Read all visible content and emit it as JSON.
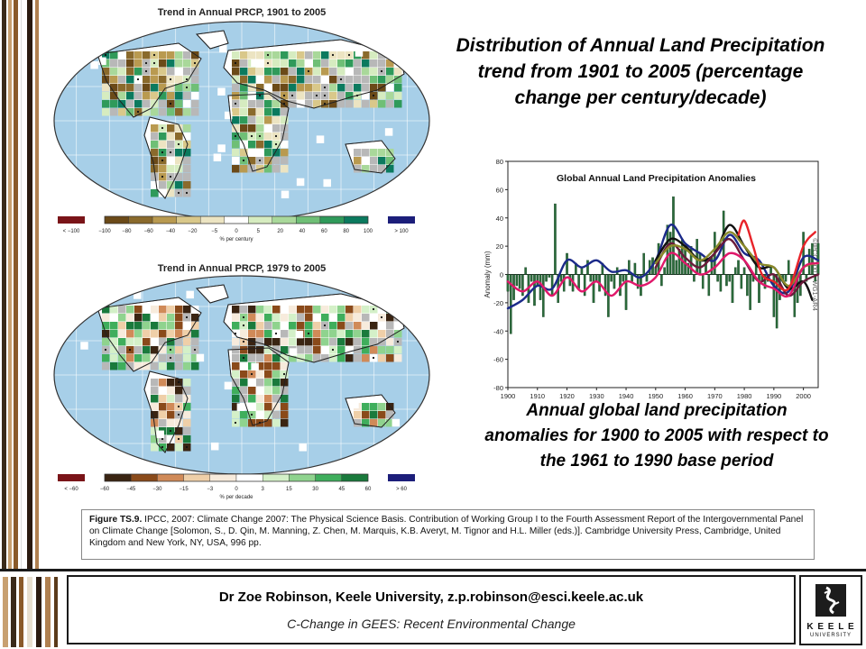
{
  "slide": {
    "main_title": "Distribution of Annual Land Precipitation trend from 1901 to 2005 (percentage change per century/decade)",
    "chart_caption": "Annual global land precipitation anomalies for 1900 to 2005 with respect to the 1961 to 1990 base period"
  },
  "map_top": {
    "title": "Trend in Annual PRCP, 1901 to 2005",
    "legend_low": "< −100",
    "legend_high": "> 100",
    "legend_ticks": [
      "−100",
      "−80",
      "−60",
      "−40",
      "−20",
      "−5",
      "0",
      "5",
      "20",
      "40",
      "60",
      "80",
      "100"
    ],
    "legend_unit": "% per century"
  },
  "map_bottom": {
    "title": "Trend in Annual PRCP, 1979 to 2005",
    "legend_low": "< −60",
    "legend_high": "> 60",
    "legend_ticks": [
      "−60",
      "−45",
      "−30",
      "−15",
      "−3",
      "0",
      "3",
      "15",
      "30",
      "45",
      "60"
    ],
    "legend_unit": "% per decade"
  },
  "legend_colors": {
    "top": [
      "#6b4a18",
      "#8a6a2c",
      "#b99a50",
      "#d9c88a",
      "#ece4c2",
      "#ffffff",
      "#d6ecc0",
      "#a9d89a",
      "#6fbf76",
      "#2f9a5a",
      "#0b7a5e"
    ],
    "bottom": [
      "#3a2412",
      "#8a4a1a",
      "#d08a58",
      "#efcfa8",
      "#f7ebdc",
      "#ffffff",
      "#d4f0c8",
      "#8fd38e",
      "#3fae5c",
      "#1a7a3c"
    ],
    "low_box_top": "#7a1418",
    "high_box_top": "#1c1e7a",
    "low_box_bottom": "#7a1418",
    "high_box_bottom": "#1c1e7a"
  },
  "chart_data": {
    "type": "bar",
    "title": "Global Annual Land Precipitation Anomalies",
    "ylabel": "Anomaly (mm)",
    "xlabel": "",
    "ylim": [
      -80,
      80
    ],
    "xlim": [
      1900,
      2005
    ],
    "yticks": [
      80,
      60,
      40,
      20,
      0,
      -20,
      -40,
      -60,
      -80
    ],
    "xticks": [
      1900,
      1910,
      1920,
      1930,
      1940,
      1950,
      1960,
      1970,
      1980,
      1990,
      2000
    ],
    "side_label": "©IPCC 2007: WG1-AR4",
    "x": [
      1900,
      1901,
      1902,
      1903,
      1904,
      1905,
      1906,
      1907,
      1908,
      1909,
      1910,
      1911,
      1912,
      1913,
      1914,
      1915,
      1916,
      1917,
      1918,
      1919,
      1920,
      1921,
      1922,
      1923,
      1924,
      1925,
      1926,
      1927,
      1928,
      1929,
      1930,
      1931,
      1932,
      1933,
      1934,
      1935,
      1936,
      1937,
      1938,
      1939,
      1940,
      1941,
      1942,
      1943,
      1944,
      1945,
      1946,
      1947,
      1948,
      1949,
      1950,
      1951,
      1952,
      1953,
      1954,
      1955,
      1956,
      1957,
      1958,
      1959,
      1960,
      1961,
      1962,
      1963,
      1964,
      1965,
      1966,
      1967,
      1968,
      1969,
      1970,
      1971,
      1972,
      1973,
      1974,
      1975,
      1976,
      1977,
      1978,
      1979,
      1980,
      1981,
      1982,
      1983,
      1984,
      1985,
      1986,
      1987,
      1988,
      1989,
      1990,
      1991,
      1992,
      1993,
      1994,
      1995,
      1996,
      1997,
      1998,
      1999,
      2000,
      2001,
      2002,
      2003,
      2004,
      2005
    ],
    "values": [
      -12,
      -42,
      -18,
      -8,
      -10,
      -15,
      5,
      -20,
      -5,
      -22,
      -8,
      -18,
      -30,
      -5,
      -2,
      -15,
      50,
      -20,
      -5,
      -12,
      15,
      -8,
      -12,
      8,
      -10,
      5,
      -15,
      10,
      -5,
      -20,
      -5,
      -12,
      8,
      -15,
      -30,
      -5,
      -10,
      5,
      -15,
      -5,
      -25,
      10,
      -5,
      8,
      -10,
      -15,
      15,
      -5,
      10,
      12,
      5,
      22,
      -8,
      5,
      35,
      30,
      55,
      10,
      18,
      25,
      20,
      8,
      20,
      -5,
      25,
      15,
      -10,
      10,
      -15,
      12,
      30,
      -5,
      -12,
      45,
      -8,
      -5,
      -20,
      5,
      10,
      -10,
      5,
      -15,
      -25,
      -5,
      10,
      -20,
      -5,
      -10,
      -5,
      5,
      -30,
      -38,
      -18,
      -5,
      -5,
      10,
      -10,
      -30,
      -20,
      -15,
      30,
      -5,
      18,
      22,
      -5,
      22
    ],
    "series": [
      {
        "name": "",
        "color": "#1b2a8a",
        "type": "smooth",
        "x": [
          1900,
          1905,
          1910,
          1915,
          1920,
          1925,
          1930,
          1935,
          1940,
          1945,
          1950,
          1955,
          1960,
          1965,
          1970,
          1975,
          1980,
          1985,
          1990,
          1995,
          2000,
          2005
        ],
        "y": [
          -24,
          -18,
          -8,
          -10,
          10,
          5,
          10,
          2,
          3,
          -2,
          10,
          35,
          22,
          15,
          10,
          28,
          15,
          10,
          -8,
          -12,
          12,
          10
        ]
      },
      {
        "name": "",
        "color": "#111111",
        "type": "smooth",
        "x": [
          1950,
          1955,
          1960,
          1965,
          1970,
          1975,
          1980,
          1985,
          1990,
          1995,
          2000,
          2003
        ],
        "y": [
          10,
          25,
          20,
          10,
          15,
          35,
          20,
          5,
          5,
          -10,
          -5,
          -18
        ]
      },
      {
        "name": "",
        "color": "#6a1a3a",
        "type": "smooth",
        "x": [
          1950,
          1955,
          1960,
          1965,
          1970,
          1975,
          1980,
          1985,
          1990,
          1995,
          2000,
          2005
        ],
        "y": [
          5,
          22,
          12,
          5,
          15,
          25,
          10,
          -5,
          0,
          -15,
          -5,
          0
        ]
      },
      {
        "name": "",
        "color": "#8a8a2a",
        "type": "smooth",
        "x": [
          1950,
          1955,
          1960,
          1965,
          1970,
          1975,
          1980,
          1985,
          1990,
          1995,
          2000,
          2005
        ],
        "y": [
          8,
          20,
          18,
          10,
          18,
          30,
          20,
          8,
          5,
          -8,
          5,
          8
        ]
      },
      {
        "name": "",
        "color": "#e0186a",
        "type": "smooth",
        "x": [
          1900,
          1905,
          1910,
          1915,
          1920,
          1925,
          1930,
          1935,
          1940,
          1945,
          1950,
          1955,
          1960,
          1965,
          1970,
          1975,
          1980,
          1985,
          1990,
          1995,
          2000,
          2005
        ],
        "y": [
          -5,
          -12,
          -5,
          -15,
          -2,
          -12,
          -5,
          -15,
          -5,
          -8,
          -2,
          15,
          8,
          0,
          5,
          15,
          10,
          -5,
          -10,
          -15,
          5,
          8
        ]
      },
      {
        "name": "",
        "color": "#e8242a",
        "type": "smooth",
        "x": [
          1978,
          1980,
          1983,
          1986,
          1990,
          1995,
          2000,
          2004
        ],
        "y": [
          28,
          38,
          20,
          0,
          -5,
          -10,
          20,
          30
        ]
      }
    ]
  },
  "citation": {
    "label": "Figure TS.9.",
    "text": "IPCC, 2007: Climate Change 2007: The Physical Science Basis. Contribution of Working Group I to the Fourth Assessment Report of the Intergovernmental Panel on Climate Change [Solomon, S., D. Qin, M. Manning, Z. Chen, M. Marquis, K.B. Averyt, M. Tignor and H.L. Miller (eds.)]. Cambridge University Press, Cambridge, United Kingdom and New York, NY, USA, 996 pp."
  },
  "footer": {
    "author": "Dr Zoe Robinson, Keele University, z.p.robinson@esci.keele.ac.uk",
    "course": "C-Change in GEES: Recent Environmental Change",
    "logo_line1": "K E E L E",
    "logo_line2": "UNIVERSITY"
  }
}
